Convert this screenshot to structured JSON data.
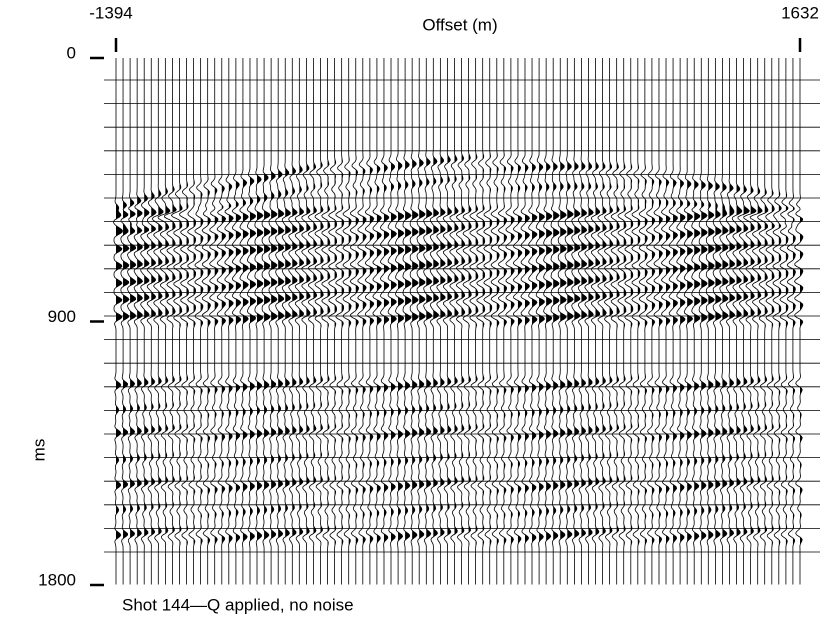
{
  "chart_data": {
    "type": "seismic",
    "x_label": "Offset (m)",
    "y_label": "ms",
    "caption": "Shot 144—Q applied, no noise",
    "xlim": [
      -1394,
      1632
    ],
    "xticks": [
      -1394,
      1632
    ],
    "ylim": [
      0,
      1800
    ],
    "yticks": [
      0,
      900,
      1800
    ]
  }
}
